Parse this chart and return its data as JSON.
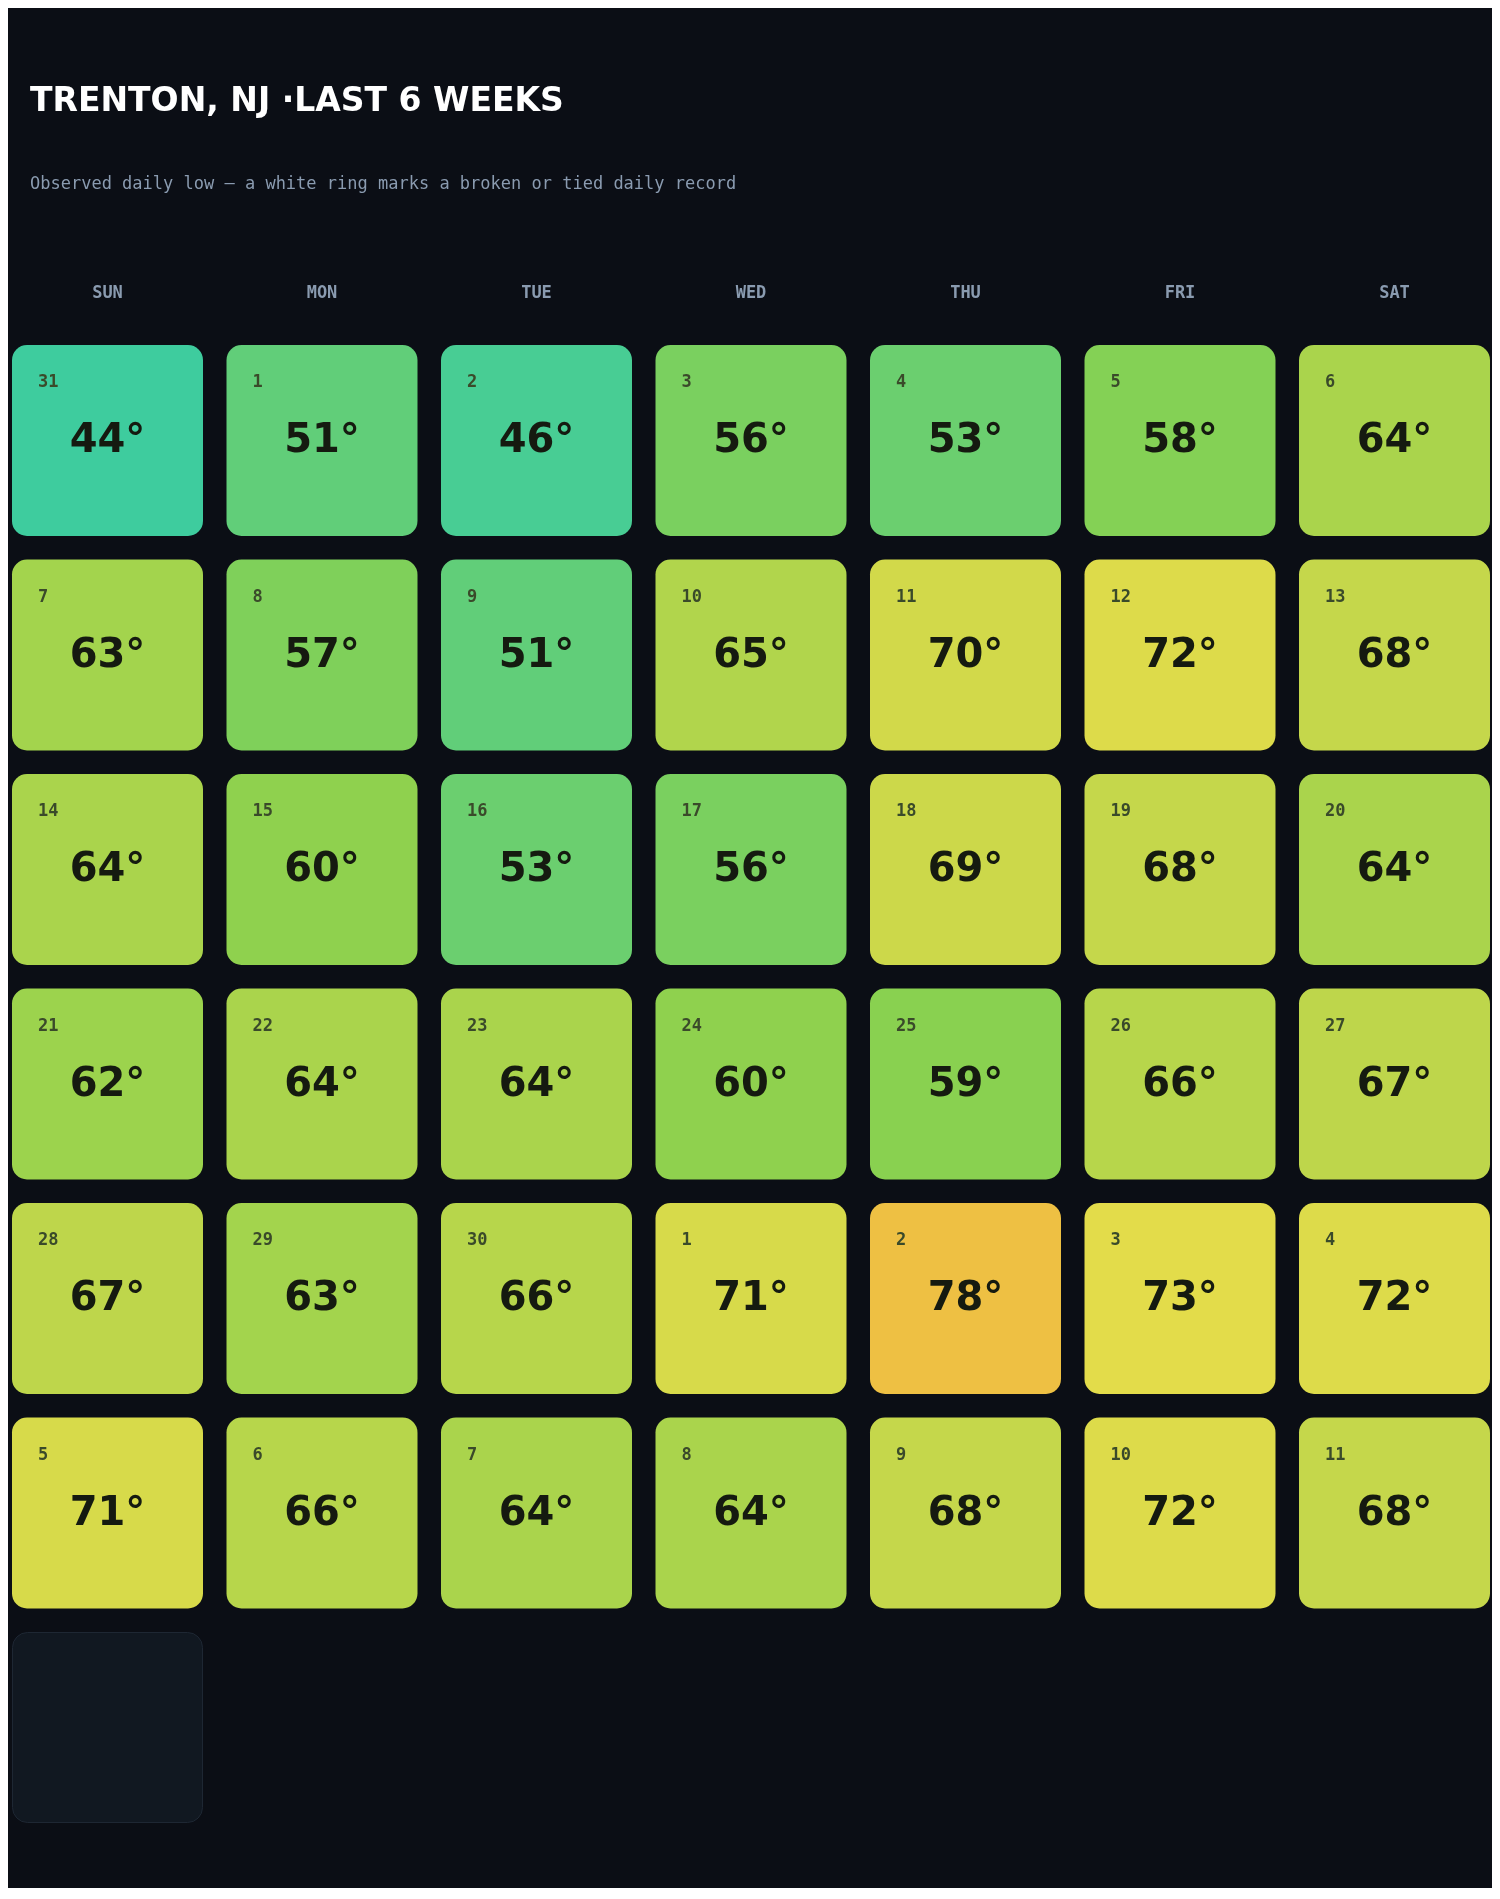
{
  "chart_data": {
    "type": "heatmap",
    "title": "TRENTON, NJ ·LAST 6 WEEKS",
    "subtitle": "Observed daily low — a white ring marks a broken or tied daily record",
    "categories": [
      "SUN",
      "MON",
      "TUE",
      "WED",
      "THU",
      "FRI",
      "SAT"
    ],
    "y_categories": [
      null,
      null,
      null,
      null,
      null,
      null
    ],
    "cells": [
      [
        44,
        51,
        46,
        56,
        53,
        58,
        64
      ],
      [
        63,
        57,
        51,
        65,
        70,
        72,
        68
      ],
      [
        64,
        60,
        53,
        56,
        69,
        68,
        64
      ],
      [
        62,
        64,
        64,
        60,
        59,
        66,
        67
      ],
      [
        67,
        63,
        66,
        71,
        78,
        73,
        72
      ],
      [
        71,
        66,
        64,
        64,
        68,
        72,
        68
      ]
    ],
    "cell_labels": [
      [
        "44°",
        "51°",
        "46°",
        "56°",
        "53°",
        "58°",
        "64°"
      ],
      [
        "63°",
        "57°",
        "51°",
        "65°",
        "70°",
        "72°",
        "68°"
      ],
      [
        "64°",
        "60°",
        "53°",
        "56°",
        "69°",
        "68°",
        "64°"
      ],
      [
        "62°",
        "64°",
        "64°",
        "60°",
        "59°",
        "66°",
        "67°"
      ],
      [
        "67°",
        "63°",
        "66°",
        "71°",
        "78°",
        "73°",
        "72°"
      ],
      [
        "71°",
        "66°",
        "64°",
        "64°",
        "68°",
        "72°",
        "68°"
      ]
    ],
    "annotations": [
      "31",
      "1",
      "2",
      "3",
      "4",
      "5",
      "6",
      "7",
      "8",
      "9",
      "10",
      "11",
      "12",
      "13",
      "14",
      "15",
      "16",
      "17",
      "18",
      "19",
      "20",
      "21",
      "22",
      "23",
      "24",
      "25",
      "26",
      "27",
      "28",
      "29",
      "30",
      "1",
      "2",
      "3",
      "4",
      "5",
      "6",
      "7",
      "8",
      "9",
      "10",
      "11"
    ]
  }
}
